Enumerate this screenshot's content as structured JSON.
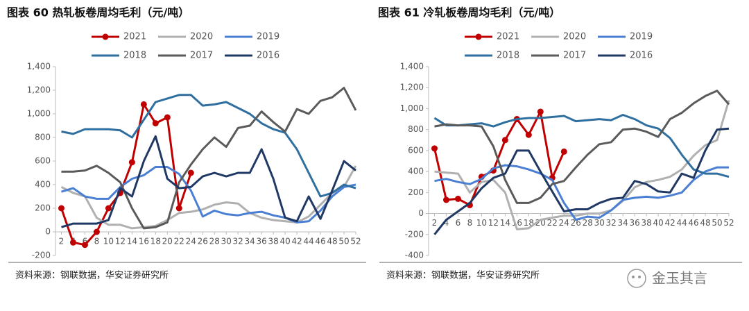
{
  "chart_data": [
    {
      "type": "line",
      "title": "图表 60  热轧板卷周均毛利（元/吨）",
      "source": "资料来源：钢联数据，华安证券研究所",
      "x": [
        2,
        4,
        6,
        8,
        10,
        12,
        14,
        16,
        18,
        20,
        22,
        24,
        26,
        28,
        30,
        32,
        34,
        36,
        38,
        40,
        42,
        44,
        46,
        48,
        50,
        52
      ],
      "xlim": [
        1,
        52
      ],
      "xticks": [
        2,
        4,
        6,
        8,
        10,
        12,
        14,
        16,
        18,
        20,
        22,
        24,
        26,
        28,
        30,
        32,
        34,
        36,
        38,
        40,
        42,
        44,
        46,
        48,
        50,
        52
      ],
      "ylim": [
        -200,
        1400
      ],
      "yticks": [
        -200,
        0,
        200,
        400,
        600,
        800,
        {
          "value": 1000,
          "label": "1,000"
        },
        {
          "value": 1200,
          "label": "1,200"
        },
        {
          "value": 1400,
          "label": "1,400"
        }
      ],
      "legend": "top",
      "series": [
        {
          "name": "2021",
          "color": "#c00000",
          "marker": "circle",
          "values": [
            200,
            -90,
            -110,
            0,
            200,
            330,
            590,
            1080,
            920,
            970,
            200,
            500,
            null,
            null,
            null,
            null,
            null,
            null,
            null,
            null,
            null,
            null,
            null,
            null,
            null,
            null
          ]
        },
        {
          "name": "2020",
          "color": "#b0b0b0",
          "values": [
            380,
            330,
            300,
            120,
            60,
            60,
            30,
            40,
            50,
            100,
            160,
            170,
            190,
            230,
            250,
            240,
            160,
            120,
            100,
            90,
            80,
            130,
            230,
            330,
            380,
            560
          ]
        },
        {
          "name": "2019",
          "color": "#4a7fd4",
          "values": [
            340,
            370,
            300,
            280,
            280,
            380,
            450,
            480,
            550,
            550,
            490,
            350,
            130,
            180,
            150,
            140,
            160,
            170,
            140,
            120,
            80,
            90,
            180,
            300,
            380,
            400
          ]
        },
        {
          "name": "2018",
          "color": "#2f6f9f",
          "values": [
            850,
            830,
            870,
            870,
            870,
            860,
            800,
            950,
            1100,
            1130,
            1160,
            1160,
            1070,
            1080,
            1100,
            1050,
            1000,
            920,
            870,
            840,
            700,
            500,
            300,
            330,
            400,
            370
          ]
        },
        {
          "name": "2017",
          "color": "#5a5a5a",
          "values": [
            510,
            510,
            520,
            560,
            500,
            420,
            200,
            30,
            40,
            80,
            420,
            570,
            700,
            800,
            720,
            880,
            900,
            1020,
            930,
            850,
            1040,
            1000,
            1110,
            1140,
            1220,
            1030
          ]
        },
        {
          "name": "2016",
          "color": "#1f3864",
          "values": [
            40,
            70,
            70,
            70,
            100,
            370,
            300,
            600,
            810,
            450,
            370,
            380,
            470,
            500,
            470,
            500,
            500,
            700,
            450,
            120,
            90,
            300,
            110,
            350,
            600,
            520
          ]
        }
      ]
    },
    {
      "type": "line",
      "title": "图表 61  冷轧板卷周均毛利（元/吨）",
      "source": "资料来源：钢联数据，华安证券研究所",
      "x": [
        2,
        4,
        6,
        8,
        10,
        12,
        14,
        16,
        18,
        20,
        22,
        24,
        26,
        28,
        30,
        32,
        34,
        36,
        38,
        40,
        42,
        44,
        46,
        48,
        50,
        52
      ],
      "xlim": [
        1,
        52
      ],
      "xticks": [
        2,
        4,
        6,
        8,
        10,
        12,
        14,
        16,
        18,
        20,
        22,
        24,
        26,
        28,
        30,
        32,
        34,
        36,
        38,
        40,
        42,
        44,
        46,
        48,
        50,
        52
      ],
      "ylim": [
        -400,
        1400
      ],
      "yticks": [
        -400,
        -200,
        0,
        200,
        400,
        600,
        800,
        {
          "value": 1000,
          "label": "1,000"
        },
        {
          "value": 1200,
          "label": "1,200"
        },
        {
          "value": 1400,
          "label": "1,400"
        }
      ],
      "legend": "top",
      "series": [
        {
          "name": "2021",
          "color": "#c00000",
          "marker": "circle",
          "values": [
            620,
            130,
            140,
            80,
            350,
            410,
            700,
            900,
            750,
            970,
            340,
            590,
            null,
            null,
            null,
            null,
            null,
            null,
            null,
            null,
            null,
            null,
            null,
            null,
            null,
            null
          ]
        },
        {
          "name": "2020",
          "color": "#b0b0b0",
          "values": [
            400,
            390,
            380,
            200,
            300,
            320,
            200,
            -150,
            -140,
            -60,
            -40,
            -20,
            -20,
            0,
            0,
            30,
            120,
            250,
            300,
            320,
            350,
            420,
            550,
            650,
            700,
            1080
          ]
        },
        {
          "name": "2019",
          "color": "#4a7fd4",
          "values": [
            310,
            330,
            300,
            280,
            330,
            430,
            460,
            450,
            420,
            380,
            320,
            100,
            -60,
            -30,
            -40,
            30,
            130,
            150,
            160,
            150,
            170,
            200,
            320,
            400,
            440,
            440
          ]
        },
        {
          "name": "2018",
          "color": "#2f6f9f",
          "values": [
            910,
            840,
            840,
            850,
            860,
            830,
            870,
            900,
            910,
            910,
            920,
            930,
            880,
            890,
            900,
            890,
            940,
            900,
            840,
            810,
            720,
            560,
            420,
            380,
            380,
            350
          ]
        },
        {
          "name": "2017",
          "color": "#5a5a5a",
          "values": [
            830,
            850,
            840,
            840,
            830,
            640,
            320,
            100,
            100,
            150,
            280,
            310,
            440,
            560,
            660,
            680,
            800,
            810,
            780,
            730,
            900,
            960,
            1050,
            1120,
            1170,
            1040
          ]
        },
        {
          "name": "2016",
          "color": "#1f3864",
          "values": [
            -200,
            -60,
            20,
            100,
            240,
            340,
            380,
            600,
            600,
            400,
            210,
            20,
            40,
            40,
            100,
            140,
            150,
            310,
            280,
            210,
            200,
            380,
            340,
            600,
            800,
            810
          ]
        }
      ]
    }
  ],
  "watermark": "金玉其言"
}
